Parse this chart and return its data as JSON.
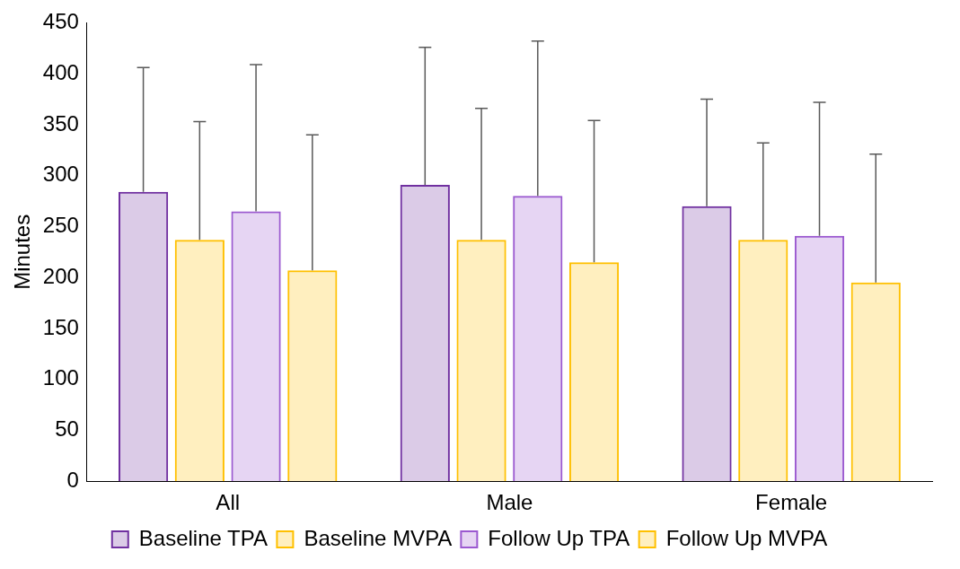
{
  "chart_data": {
    "type": "bar",
    "ylabel": "Minutes",
    "categories": [
      "All",
      "Male",
      "Female"
    ],
    "series": [
      {
        "name": "Baseline TPA",
        "color": "#7030a0",
        "values": [
          284,
          291,
          270
        ],
        "errors": [
          [
            284,
            406
          ],
          [
            291,
            426
          ],
          [
            270,
            375
          ]
        ]
      },
      {
        "name": "Baseline MVPA",
        "color": "#ffc000",
        "values": [
          237,
          237,
          237
        ],
        "errors": [
          [
            237,
            353
          ],
          [
            237,
            366
          ],
          [
            237,
            332
          ]
        ]
      },
      {
        "name": "Follow Up TPA",
        "color": "#9b59d0",
        "values": [
          265,
          280,
          241
        ],
        "errors": [
          [
            265,
            409
          ],
          [
            280,
            432
          ],
          [
            241,
            372
          ]
        ]
      },
      {
        "name": "Follow Up MVPA",
        "color": "#ffc000",
        "values": [
          207,
          215,
          195
        ],
        "errors": [
          [
            207,
            340
          ],
          [
            215,
            354
          ],
          [
            195,
            321
          ]
        ]
      }
    ],
    "ylim": [
      0,
      450
    ],
    "yticks": [
      0,
      50,
      100,
      150,
      200,
      250,
      300,
      350,
      400,
      450
    ],
    "grid": false,
    "legend": "bottom"
  }
}
